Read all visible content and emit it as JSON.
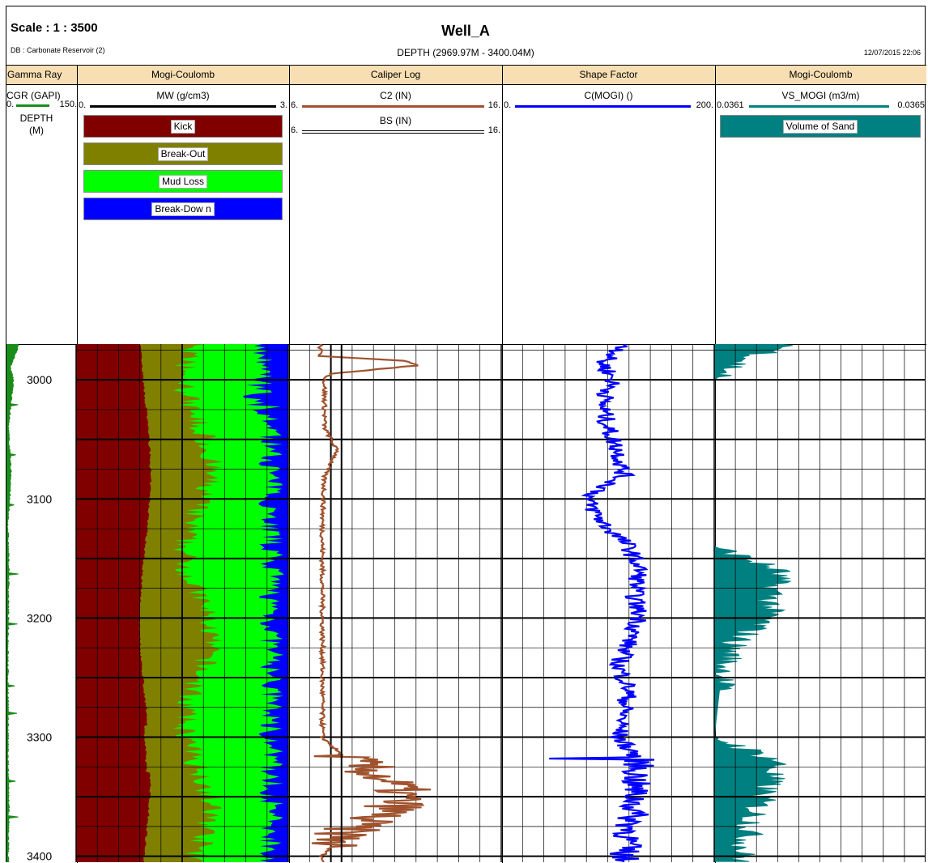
{
  "header": {
    "scale": "Scale : 1 : 3500",
    "db": "DB : Carbonate Reservoir (2)",
    "title": "Well_A",
    "depth_range": "DEPTH (2969.97M - 3400.04M)",
    "date": "12/07/2015 22:06"
  },
  "tracks": [
    {
      "name": "Gamma Ray"
    },
    {
      "name": "Mogi-Coulomb"
    },
    {
      "name": "Caliper Log"
    },
    {
      "name": "Shape Factor"
    },
    {
      "name": "Mogi-Coulomb"
    }
  ],
  "curves": {
    "cgr": {
      "label": "CGR (GAPI)",
      "min": "0.",
      "max": "150.",
      "color": "#1a8c1a"
    },
    "depth_label": "DEPTH",
    "depth_unit": "(M)",
    "mw": {
      "label": "MW (g/cm3)",
      "min": "0.",
      "max": "3.",
      "color": "#000000"
    },
    "c2": {
      "label": "C2 (IN)",
      "min": "6.",
      "max": "16.",
      "color": "#a0522d"
    },
    "bs": {
      "label": "BS (IN)",
      "min": "6.",
      "max": "16.",
      "color": "#000000"
    },
    "cmogi": {
      "label": "C(MOGI) ()",
      "min": "0.",
      "max": "200.",
      "color": "#0000ff"
    },
    "vs": {
      "label": "VS_MOGI (m3/m)",
      "min": "0.0361",
      "max": "0.0365",
      "color": "#008080"
    }
  },
  "legend": {
    "kick": {
      "label": "Kick",
      "color": "#800000"
    },
    "breakout": {
      "label": "Break-Out",
      "color": "#808000"
    },
    "mudloss": {
      "label": "Mud Loss",
      "color": "#00ff00"
    },
    "breakdown": {
      "label": "Break-Dow n",
      "color": "#0000ff"
    },
    "sand": {
      "label": "Volume of Sand",
      "color": "#008080"
    }
  },
  "chart_data": {
    "type": "line",
    "depth_axis": {
      "label": "DEPTH (M)",
      "range": [
        2969.97,
        3400.04
      ],
      "ticks": [
        3000,
        3100,
        3200,
        3300,
        3400
      ]
    },
    "grid": true,
    "series": [
      {
        "name": "CGR (GAPI)",
        "range": [
          0,
          150
        ],
        "depth": [
          2972,
          2990,
          3000,
          3040,
          3080,
          3120,
          3160,
          3200,
          3240,
          3280,
          3320,
          3360,
          3398
        ],
        "values": [
          25,
          8,
          15,
          4,
          10,
          3,
          5,
          4,
          3,
          4,
          3,
          5,
          4
        ]
      },
      {
        "name": "C2 (IN)",
        "range": [
          6,
          16
        ],
        "depth": [
          2970,
          2980,
          2984,
          2988,
          2995,
          3000,
          3040,
          3060,
          3080,
          3120,
          3180,
          3240,
          3300,
          3315,
          3330,
          3345,
          3360,
          3375,
          3392,
          3400
        ],
        "values": [
          7.5,
          7.5,
          11.5,
          12,
          8,
          7.7,
          7.7,
          8.3,
          7.7,
          7.6,
          7.6,
          7.6,
          7.6,
          8.5,
          10,
          11.3,
          11,
          9,
          8,
          7.6
        ]
      },
      {
        "name": "BS (IN)",
        "range": [
          6,
          16
        ],
        "depth": [
          2970,
          3400
        ],
        "values": [
          8.5,
          8.5
        ]
      },
      {
        "name": "C(MOGI) ()",
        "range": [
          0,
          200
        ],
        "depth": [
          2970,
          2985,
          3000,
          3020,
          3040,
          3060,
          3080,
          3100,
          3120,
          3140,
          3160,
          3180,
          3200,
          3220,
          3240,
          3260,
          3280,
          3300,
          3320,
          3340,
          3360,
          3380,
          3400
        ],
        "values": [
          120,
          95,
          105,
          95,
          100,
          110,
          115,
          80,
          95,
          120,
          130,
          125,
          130,
          120,
          110,
          120,
          115,
          110,
          130,
          125,
          125,
          120,
          115
        ]
      },
      {
        "name": "VS_MOGI (m3/m)",
        "range": [
          0.0361,
          0.0365
        ],
        "depth": [
          2970,
          2985,
          3000,
          3060,
          3140,
          3160,
          3200,
          3220,
          3240,
          3260,
          3300,
          3320,
          3340,
          3360,
          3400
        ],
        "values": [
          0.03625,
          0.03615,
          0.0361,
          0.0361,
          0.0361,
          0.03622,
          0.0362,
          0.03614,
          0.03612,
          0.03611,
          0.0361,
          0.03622,
          0.0362,
          0.03618,
          0.03615
        ]
      }
    ]
  }
}
